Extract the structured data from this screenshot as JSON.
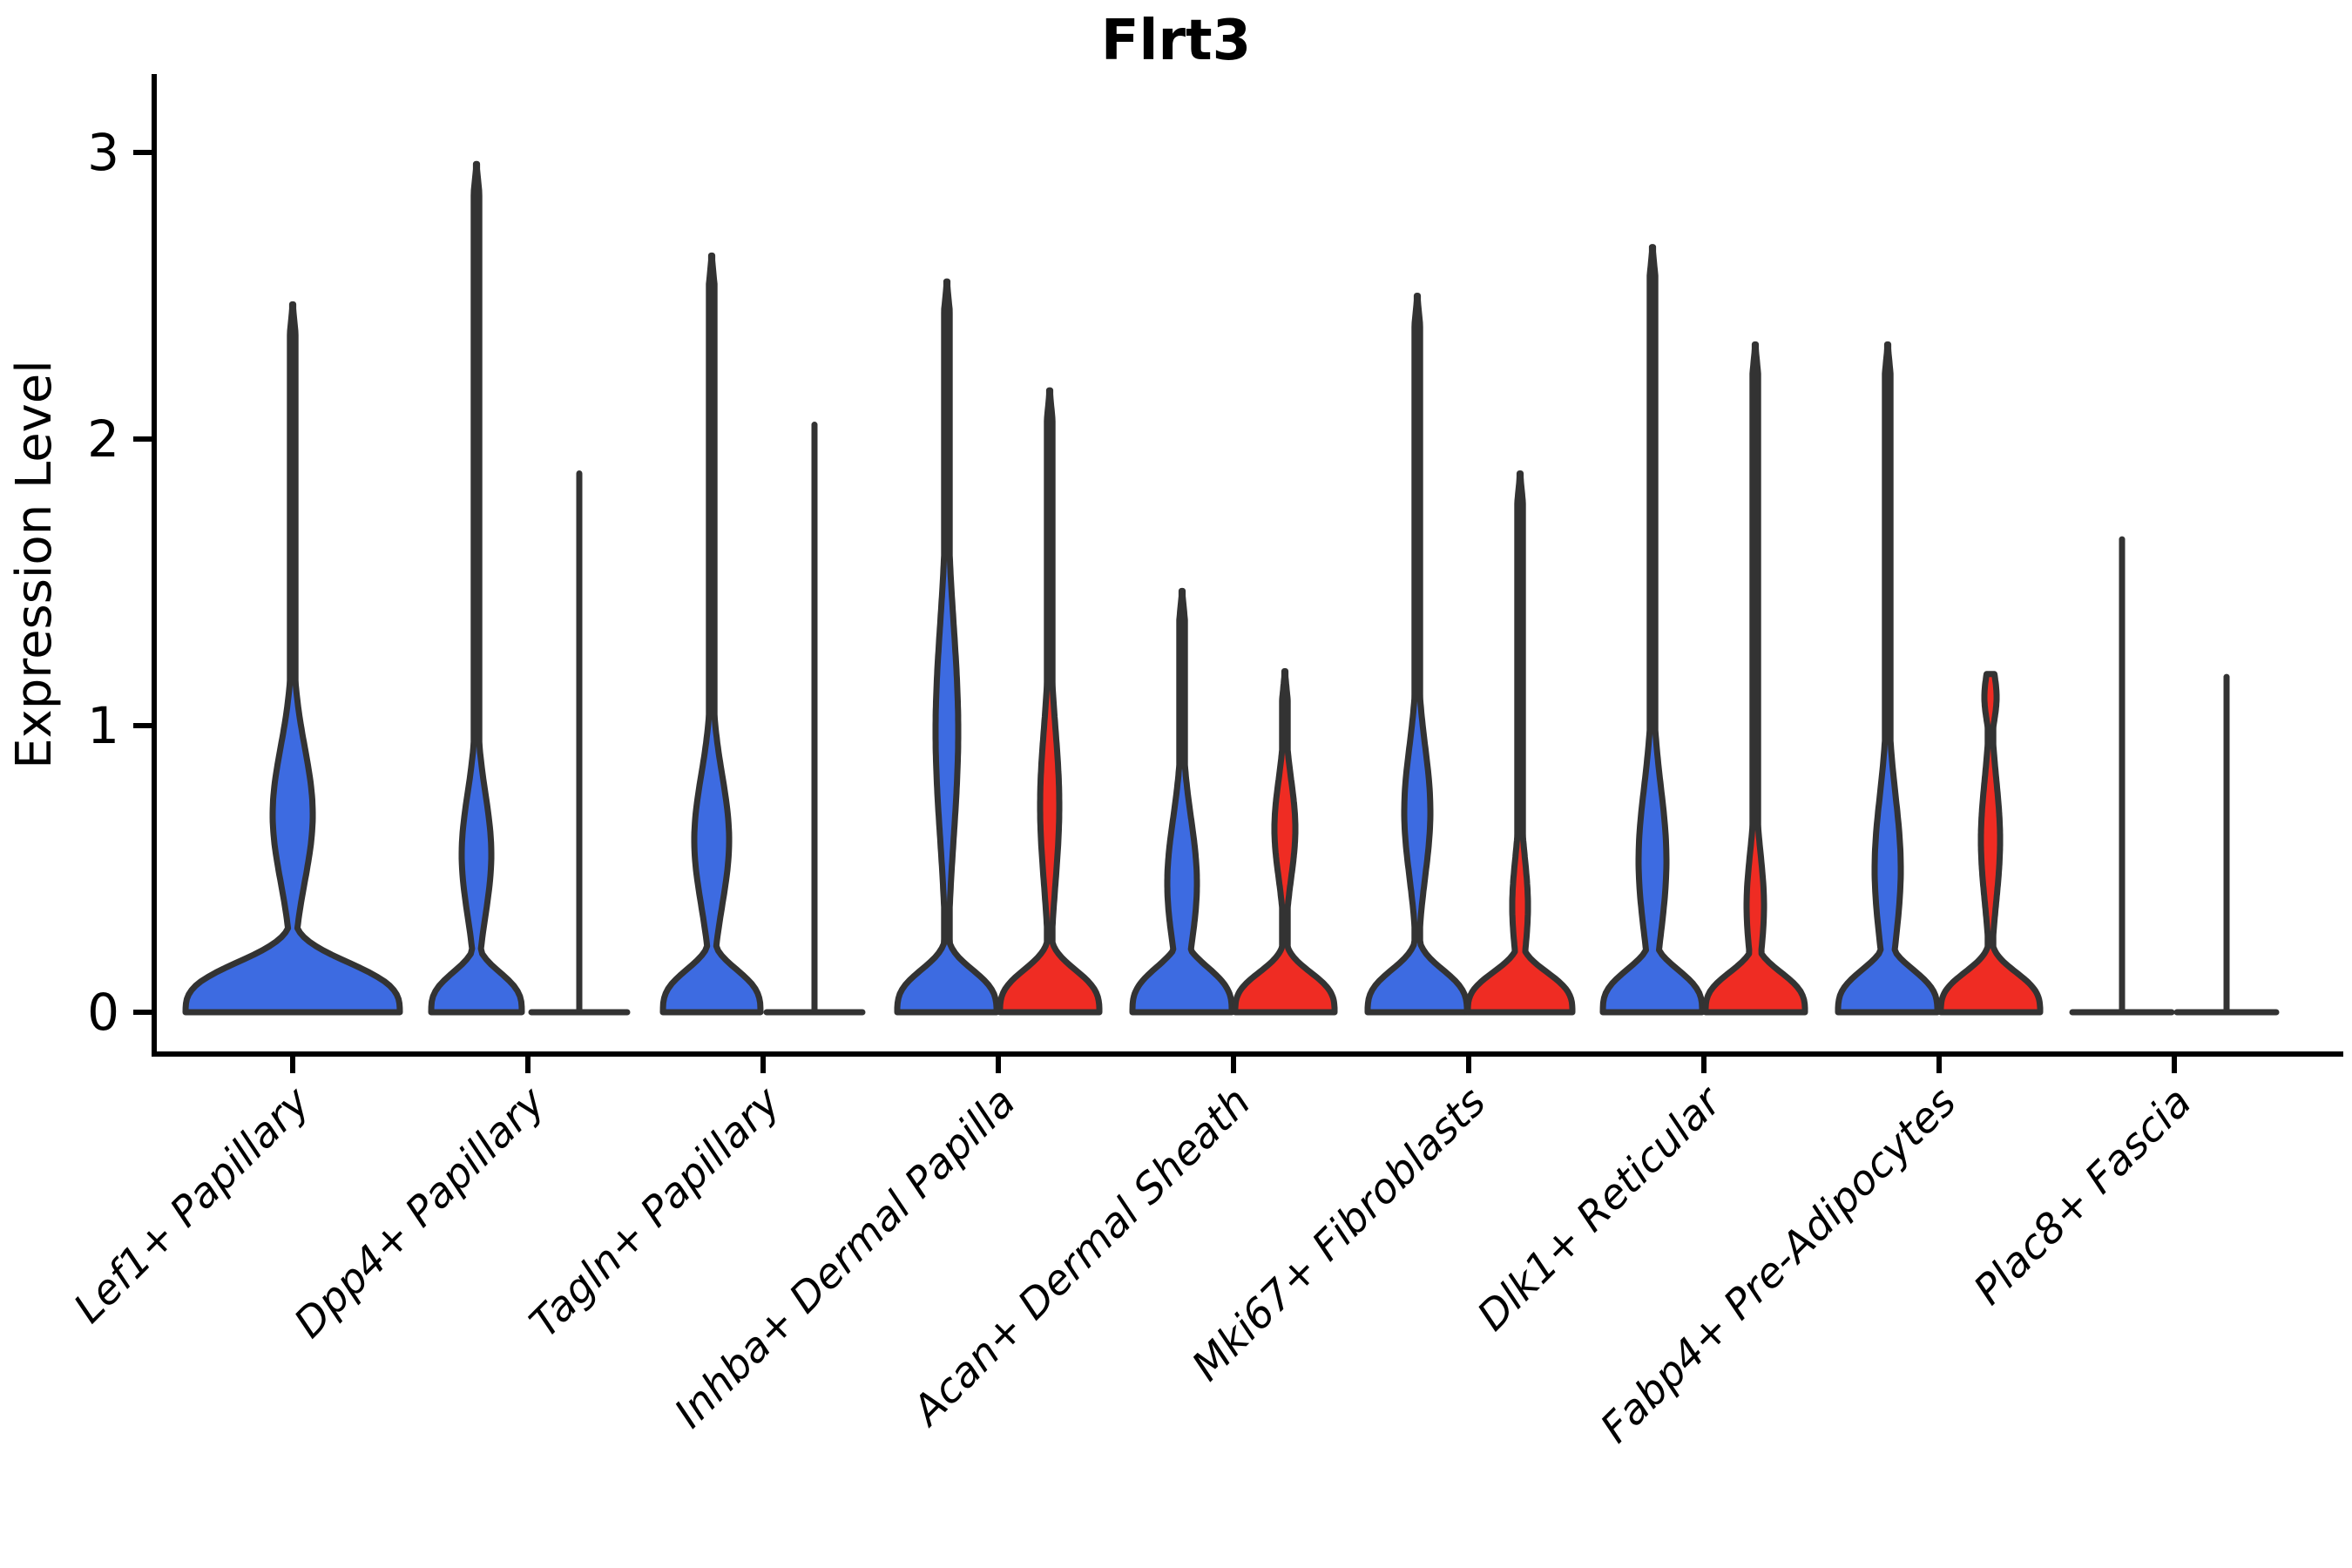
{
  "title": "Flrt3",
  "y_axis": {
    "label": "Expression Level",
    "tick_labels": [
      "0",
      "1",
      "2",
      "3"
    ]
  },
  "colors": {
    "blue_fill": "#3D6BE1",
    "red_fill": "#EF2C23",
    "outline": "#333333",
    "axis": "#000000",
    "background": "#ffffff"
  },
  "chart_data": {
    "type": "violin",
    "title": "Flrt3",
    "xlabel": "",
    "ylabel": "Expression Level",
    "ylim": [
      0,
      3.1
    ],
    "yticks": [
      0,
      1,
      2,
      3
    ],
    "grid": false,
    "legend": "none",
    "split_series": [
      {
        "name": "split-blue",
        "color": "#3D6BE1"
      },
      {
        "name": "split-red",
        "color": "#EF2C23"
      }
    ],
    "categories": [
      "Lef1+ Papillary",
      "Dpp4+ Papillary",
      "Tagln+ Papillary",
      "Inhba+ Dermal Papilla",
      "Acan+ Dermal Sheath",
      "Mki67+ Fibroblasts",
      "Dlk1+ Reticular",
      "Fabp4+ Pre-Adipocytes",
      "Plac8+ Fascia"
    ],
    "groups": [
      {
        "category": "Lef1+ Papillary",
        "violins": [
          {
            "split": "blue",
            "style": "violin",
            "offset": 0,
            "max": 2.47,
            "base_halfwidth": 123,
            "base_sigma": 0.2,
            "bulges": [
              {
                "center": 0.69,
                "halfwidth": 23,
                "sigma": 0.33
              }
            ]
          }
        ]
      },
      {
        "category": "Dpp4+ Papillary",
        "violins": [
          {
            "split": "blue",
            "style": "violin",
            "offset": -59,
            "max": 2.96,
            "base_halfwidth": 52,
            "base_sigma": 0.16,
            "bulges": [
              {
                "center": 0.55,
                "halfwidth": 17,
                "sigma": 0.3
              }
            ]
          },
          {
            "split": "red",
            "style": "line",
            "offset": 59,
            "max": 1.88,
            "pedestal_halfwidth": 55
          }
        ]
      },
      {
        "category": "Tagln+ Papillary",
        "violins": [
          {
            "split": "blue",
            "style": "violin",
            "offset": -59,
            "max": 2.64,
            "base_halfwidth": 56,
            "base_sigma": 0.17,
            "bulges": [
              {
                "center": 0.6,
                "halfwidth": 20,
                "sigma": 0.32
              }
            ]
          },
          {
            "split": "red",
            "style": "line",
            "offset": 59,
            "max": 2.05,
            "pedestal_halfwidth": 55
          }
        ]
      },
      {
        "category": "Inhba+ Dermal Papilla",
        "violins": [
          {
            "split": "blue",
            "style": "violin",
            "offset": -59,
            "max": 2.55,
            "base_halfwidth": 57,
            "base_sigma": 0.17,
            "bulges": [
              {
                "center": 0.98,
                "halfwidth": 13,
                "sigma": 0.52
              }
            ]
          },
          {
            "split": "red",
            "style": "violin",
            "offset": 59,
            "max": 2.17,
            "base_halfwidth": 57,
            "base_sigma": 0.17,
            "bulges": [
              {
                "center": 0.72,
                "halfwidth": 11,
                "sigma": 0.38
              }
            ]
          }
        ]
      },
      {
        "category": "Acan+ Dermal Sheath",
        "violins": [
          {
            "split": "blue",
            "style": "violin",
            "offset": -59,
            "max": 1.47,
            "base_halfwidth": 57,
            "base_sigma": 0.18,
            "bulges": [
              {
                "center": 0.45,
                "halfwidth": 17,
                "sigma": 0.32
              }
            ]
          },
          {
            "split": "red",
            "style": "violin",
            "offset": 59,
            "max": 1.19,
            "base_halfwidth": 57,
            "base_sigma": 0.16,
            "bulges": [
              {
                "center": 0.64,
                "halfwidth": 12,
                "sigma": 0.24
              }
            ]
          }
        ]
      },
      {
        "category": "Mki67+ Fibroblasts",
        "violins": [
          {
            "split": "blue",
            "style": "violin",
            "offset": -59,
            "max": 2.5,
            "base_halfwidth": 57,
            "base_sigma": 0.17,
            "bulges": [
              {
                "center": 0.7,
                "halfwidth": 15,
                "sigma": 0.32
              }
            ]
          },
          {
            "split": "red",
            "style": "violin",
            "offset": 59,
            "max": 1.88,
            "base_halfwidth": 60,
            "base_sigma": 0.16,
            "bulges": [
              {
                "center": 0.37,
                "halfwidth": 9,
                "sigma": 0.24
              }
            ]
          }
        ]
      },
      {
        "category": "Dlk1+ Reticular",
        "violins": [
          {
            "split": "blue",
            "style": "violin",
            "offset": -59,
            "max": 2.67,
            "base_halfwidth": 57,
            "base_sigma": 0.17,
            "bulges": [
              {
                "center": 0.53,
                "halfwidth": 16,
                "sigma": 0.36
              }
            ]
          },
          {
            "split": "red",
            "style": "violin",
            "offset": 59,
            "max": 2.33,
            "base_halfwidth": 57,
            "base_sigma": 0.16,
            "bulges": [
              {
                "center": 0.37,
                "halfwidth": 10,
                "sigma": 0.26
              }
            ]
          }
        ]
      },
      {
        "category": "Fabp4+ Pre-Adipocytes",
        "violins": [
          {
            "split": "blue",
            "style": "violin",
            "offset": -59,
            "max": 2.33,
            "base_halfwidth": 57,
            "base_sigma": 0.17,
            "bulges": [
              {
                "center": 0.5,
                "halfwidth": 15,
                "sigma": 0.36
              }
            ]
          },
          {
            "split": "red",
            "style": "violin",
            "offset": 59,
            "max": 1.18,
            "base_halfwidth": 57,
            "base_sigma": 0.16,
            "bulges": [
              {
                "center": 0.6,
                "halfwidth": 11,
                "sigma": 0.3
              },
              {
                "center": 1.1,
                "halfwidth": 7,
                "sigma": 0.12
              }
            ]
          }
        ]
      },
      {
        "category": "Plac8+ Fascia",
        "violins": [
          {
            "split": "blue",
            "style": "line",
            "offset": -60,
            "max": 1.65,
            "pedestal_halfwidth": 57
          },
          {
            "split": "red",
            "style": "line",
            "offset": 60,
            "max": 1.17,
            "pedestal_halfwidth": 57
          }
        ]
      }
    ]
  }
}
